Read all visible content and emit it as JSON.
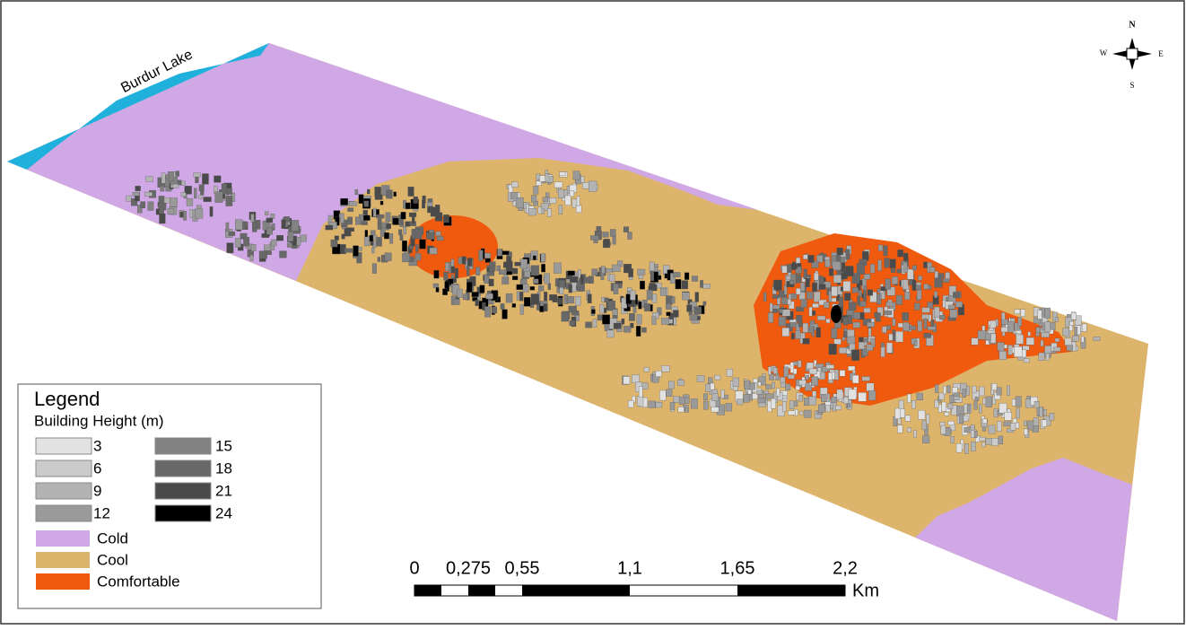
{
  "map": {
    "lake_label": "Burdur Lake",
    "compass": {
      "n": "N",
      "s": "S",
      "e": "E",
      "w": "W"
    },
    "legend": {
      "title": "Legend",
      "height_title": "Building Height (m)",
      "heights": [
        {
          "label": 3,
          "color": "#e2e2e2"
        },
        {
          "label": 6,
          "color": "#cbcbcb"
        },
        {
          "label": 9,
          "color": "#b3b3b3"
        },
        {
          "label": 12,
          "color": "#9a9a9a"
        },
        {
          "label": 15,
          "color": "#828282"
        },
        {
          "label": 18,
          "color": "#686868"
        },
        {
          "label": 21,
          "color": "#4a4a4a"
        },
        {
          "label": 24,
          "color": "#000000"
        }
      ],
      "classes": [
        {
          "label": "Cold",
          "color": "#d0a8e6"
        },
        {
          "label": "Cool",
          "color": "#ddb46c"
        },
        {
          "label": "Comfortable",
          "color": "#f05a0e"
        }
      ]
    },
    "scale_bar": {
      "labels": [
        "0",
        "0,275",
        "0,55",
        "1,1",
        "1,65",
        "2,2"
      ],
      "unit": "Km"
    }
  }
}
